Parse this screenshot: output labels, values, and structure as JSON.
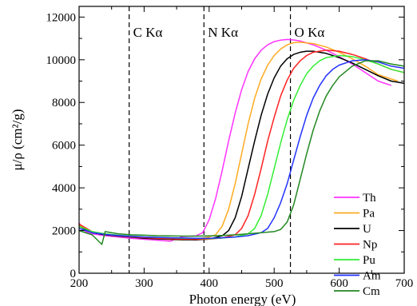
{
  "chart_data": {
    "type": "line",
    "xlabel": "Photon energy  (eV)",
    "ylabel": "μ/ρ (cm²/g)",
    "xlim": [
      200,
      700
    ],
    "ylim": [
      0,
      12500
    ],
    "x_ticks": [
      200,
      300,
      400,
      500,
      600,
      700
    ],
    "y_ticks": [
      0,
      2000,
      4000,
      6000,
      8000,
      10000,
      12000
    ],
    "grid": false,
    "legend_position": "lower-right",
    "edges": [
      {
        "label": "C Kα",
        "x": 277
      },
      {
        "label": "N Kα",
        "x": 392
      },
      {
        "label": "O Kα",
        "x": 525
      }
    ],
    "series": [
      {
        "name": "Th",
        "color": "#ff33ff",
        "x": [
          200,
          210,
          220,
          240,
          260,
          280,
          300,
          320,
          340,
          360,
          380,
          390,
          400,
          410,
          420,
          430,
          440,
          450,
          460,
          470,
          480,
          490,
          500,
          510,
          520,
          530,
          540,
          560,
          580,
          600,
          620,
          640,
          660,
          680
        ],
        "y": [
          2350,
          1950,
          1850,
          1760,
          1700,
          1640,
          1590,
          1550,
          1500,
          1720,
          1750,
          1900,
          2500,
          3500,
          4800,
          6200,
          7500,
          8600,
          9450,
          10050,
          10450,
          10700,
          10850,
          10920,
          10950,
          10930,
          10880,
          10700,
          10450,
          10150,
          9800,
          9400,
          9000,
          8800
        ]
      },
      {
        "name": "Pa",
        "color": "#ffaa22",
        "x": [
          200,
          220,
          240,
          260,
          280,
          300,
          320,
          340,
          360,
          380,
          400,
          410,
          420,
          430,
          440,
          450,
          460,
          470,
          480,
          490,
          500,
          510,
          520,
          530,
          540,
          560,
          580,
          600,
          620,
          640,
          660,
          690
        ],
        "y": [
          2250,
          1900,
          1820,
          1760,
          1700,
          1650,
          1610,
          1580,
          1560,
          1600,
          1700,
          1800,
          2200,
          3000,
          4200,
          5600,
          7000,
          8200,
          9100,
          9750,
          10200,
          10500,
          10700,
          10800,
          10820,
          10760,
          10600,
          10350,
          10050,
          9700,
          9300,
          9000
        ]
      },
      {
        "name": "U",
        "color": "#000000",
        "x": [
          200,
          220,
          240,
          260,
          280,
          300,
          320,
          340,
          360,
          380,
          400,
          420,
          430,
          440,
          450,
          460,
          470,
          480,
          490,
          500,
          510,
          520,
          530,
          540,
          550,
          560,
          580,
          600,
          620,
          640,
          660,
          680,
          700
        ],
        "y": [
          2200,
          1900,
          1800,
          1740,
          1690,
          1640,
          1610,
          1590,
          1570,
          1560,
          1600,
          1750,
          2000,
          2600,
          3600,
          4900,
          6200,
          7400,
          8400,
          9150,
          9700,
          10050,
          10250,
          10350,
          10400,
          10400,
          10300,
          10100,
          9850,
          9550,
          9250,
          9000,
          8900
        ]
      },
      {
        "name": "Np",
        "color": "#ff2222",
        "x": [
          200,
          220,
          240,
          260,
          280,
          300,
          320,
          340,
          360,
          380,
          400,
          420,
          440,
          450,
          460,
          470,
          480,
          490,
          500,
          510,
          520,
          530,
          540,
          550,
          560,
          580,
          600,
          620,
          640,
          660,
          680,
          700
        ],
        "y": [
          2300,
          1950,
          1820,
          1760,
          1710,
          1670,
          1640,
          1620,
          1600,
          1590,
          1600,
          1650,
          1800,
          2100,
          2700,
          3700,
          4900,
          6200,
          7300,
          8300,
          9050,
          9600,
          9950,
          10200,
          10350,
          10450,
          10400,
          10250,
          10050,
          9800,
          9550,
          9400
        ]
      },
      {
        "name": "Pu",
        "color": "#33ee33",
        "x": [
          200,
          220,
          240,
          260,
          280,
          300,
          320,
          340,
          360,
          380,
          400,
          420,
          440,
          460,
          470,
          480,
          490,
          500,
          510,
          520,
          530,
          540,
          550,
          560,
          570,
          580,
          600,
          620,
          640,
          660,
          680,
          700
        ],
        "y": [
          2200,
          1950,
          1850,
          1780,
          1740,
          1700,
          1680,
          1660,
          1640,
          1630,
          1620,
          1650,
          1700,
          1850,
          2100,
          2700,
          3700,
          4900,
          6100,
          7200,
          8100,
          8800,
          9350,
          9700,
          9950,
          10100,
          10200,
          10150,
          10000,
          9800,
          9550,
          9400
        ]
      },
      {
        "name": "Am",
        "color": "#2233ff",
        "x": [
          200,
          220,
          240,
          260,
          280,
          300,
          320,
          340,
          360,
          380,
          400,
          420,
          440,
          460,
          480,
          490,
          500,
          510,
          520,
          530,
          540,
          550,
          560,
          570,
          580,
          590,
          600,
          620,
          640,
          660,
          680,
          700
        ],
        "y": [
          2100,
          1900,
          1820,
          1770,
          1730,
          1700,
          1680,
          1660,
          1650,
          1640,
          1640,
          1660,
          1700,
          1760,
          1900,
          2100,
          2600,
          3300,
          4200,
          5300,
          6400,
          7400,
          8200,
          8800,
          9250,
          9550,
          9750,
          9950,
          10000,
          9900,
          9700,
          9600
        ]
      },
      {
        "name": "Cm",
        "color": "#228822",
        "x": [
          200,
          220,
          235,
          240,
          260,
          280,
          300,
          320,
          340,
          360,
          380,
          400,
          420,
          440,
          460,
          480,
          500,
          510,
          520,
          530,
          540,
          550,
          560,
          570,
          580,
          590,
          600,
          620,
          640,
          660,
          680,
          700
        ],
        "y": [
          2000,
          1800,
          1350,
          1950,
          1850,
          1800,
          1780,
          1760,
          1750,
          1740,
          1740,
          1750,
          1770,
          1800,
          1850,
          1900,
          1950,
          2050,
          2400,
          3200,
          4400,
          5600,
          6700,
          7600,
          8300,
          8800,
          9200,
          9700,
          9950,
          9950,
          9800,
          9700
        ]
      }
    ]
  }
}
